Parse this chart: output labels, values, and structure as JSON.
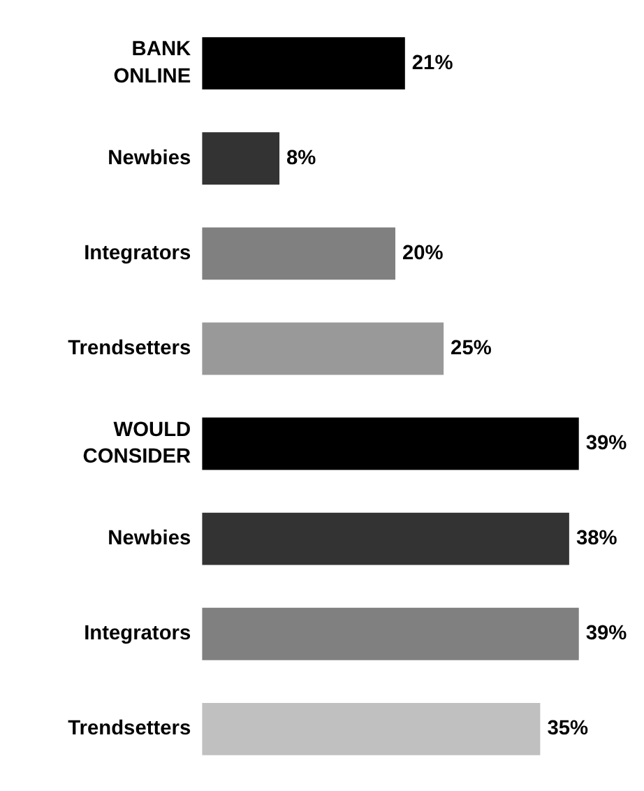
{
  "chart_data": {
    "type": "bar",
    "orientation": "horizontal",
    "value_labels": [
      "21%",
      "8%",
      "20%",
      "25%",
      "39%",
      "38%",
      "39%",
      "35%"
    ],
    "categories": [
      "BANK\nONLINE",
      "Newbies",
      "Integrators",
      "Trendsetters",
      "WOULD\nCONSIDER",
      "Newbies",
      "Integrators",
      "Trendsetters"
    ],
    "values": [
      21,
      8,
      20,
      25,
      39,
      38,
      39,
      35
    ],
    "colors": [
      "#000000",
      "#333333",
      "#808080",
      "#999999",
      "#000000",
      "#333333",
      "#808080",
      "#c0c0c0"
    ]
  }
}
